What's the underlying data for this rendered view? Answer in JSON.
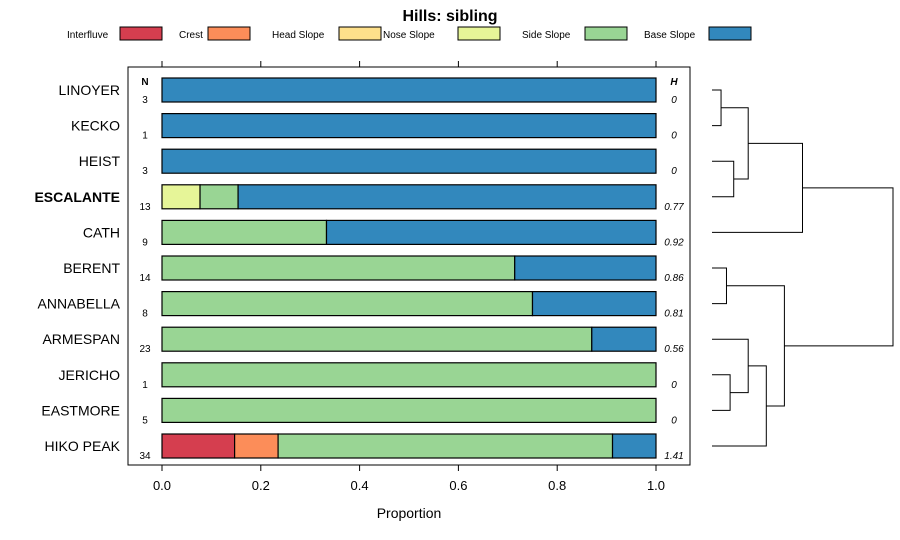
{
  "chart_data": {
    "type": "bar",
    "orientation": "horizontal",
    "stacked": true,
    "title": "Hills: sibling",
    "xlabel": "Proportion",
    "xlim": [
      0,
      1
    ],
    "xticks": [
      "0.0",
      "0.2",
      "0.4",
      "0.6",
      "0.8",
      "1.0"
    ],
    "n_header": "N",
    "h_header": "H",
    "legend_position": "top",
    "highlight": "ESCALANTE",
    "series": [
      {
        "name": "Interfluve",
        "color": "#d53e4f"
      },
      {
        "name": "Crest",
        "color": "#fc8d59"
      },
      {
        "name": "Head Slope",
        "color": "#fee08b"
      },
      {
        "name": "Nose Slope",
        "color": "#e6f598"
      },
      {
        "name": "Side Slope",
        "color": "#99d594"
      },
      {
        "name": "Base Slope",
        "color": "#3288bd"
      }
    ],
    "rows": [
      {
        "name": "LINOYER",
        "n": "3",
        "h": "0",
        "values": [
          0,
          0,
          0,
          0,
          0,
          1
        ]
      },
      {
        "name": "KECKO",
        "n": "1",
        "h": "0",
        "values": [
          0,
          0,
          0,
          0,
          0,
          1
        ]
      },
      {
        "name": "HEIST",
        "n": "3",
        "h": "0",
        "values": [
          0,
          0,
          0,
          0,
          0,
          1
        ]
      },
      {
        "name": "ESCALANTE",
        "n": "13",
        "h": "0.77",
        "values": [
          0,
          0,
          0,
          0.077,
          0.077,
          0.846
        ]
      },
      {
        "name": "CATH",
        "n": "9",
        "h": "0.92",
        "values": [
          0,
          0,
          0,
          0,
          0.333,
          0.667
        ]
      },
      {
        "name": "BERENT",
        "n": "14",
        "h": "0.86",
        "values": [
          0,
          0,
          0,
          0,
          0.714,
          0.286
        ]
      },
      {
        "name": "ANNABELLA",
        "n": "8",
        "h": "0.81",
        "values": [
          0,
          0,
          0,
          0,
          0.75,
          0.25
        ]
      },
      {
        "name": "ARMESPAN",
        "n": "23",
        "h": "0.56",
        "values": [
          0,
          0,
          0,
          0,
          0.87,
          0.13
        ]
      },
      {
        "name": "JERICHO",
        "n": "1",
        "h": "0",
        "values": [
          0,
          0,
          0,
          0,
          1,
          0
        ]
      },
      {
        "name": "EASTMORE",
        "n": "5",
        "h": "0",
        "values": [
          0,
          0,
          0,
          0,
          1,
          0
        ]
      },
      {
        "name": "HIKO PEAK",
        "n": "34",
        "h": "1.41",
        "values": [
          0.147,
          0.088,
          0,
          0,
          0.677,
          0.088
        ]
      }
    ],
    "dendrogram": {
      "merges": [
        [
          0,
          1,
          0.05
        ],
        [
          3,
          2,
          0.12
        ],
        [
          -1,
          -2,
          0.2
        ],
        [
          -3,
          4,
          0.5
        ],
        [
          5,
          6,
          0.08
        ],
        [
          8,
          9,
          0.1
        ],
        [
          7,
          -6,
          0.2
        ],
        [
          -7,
          10,
          0.3
        ],
        [
          -5,
          -8,
          0.4
        ],
        [
          -4,
          -9,
          1.0
        ]
      ]
    }
  }
}
